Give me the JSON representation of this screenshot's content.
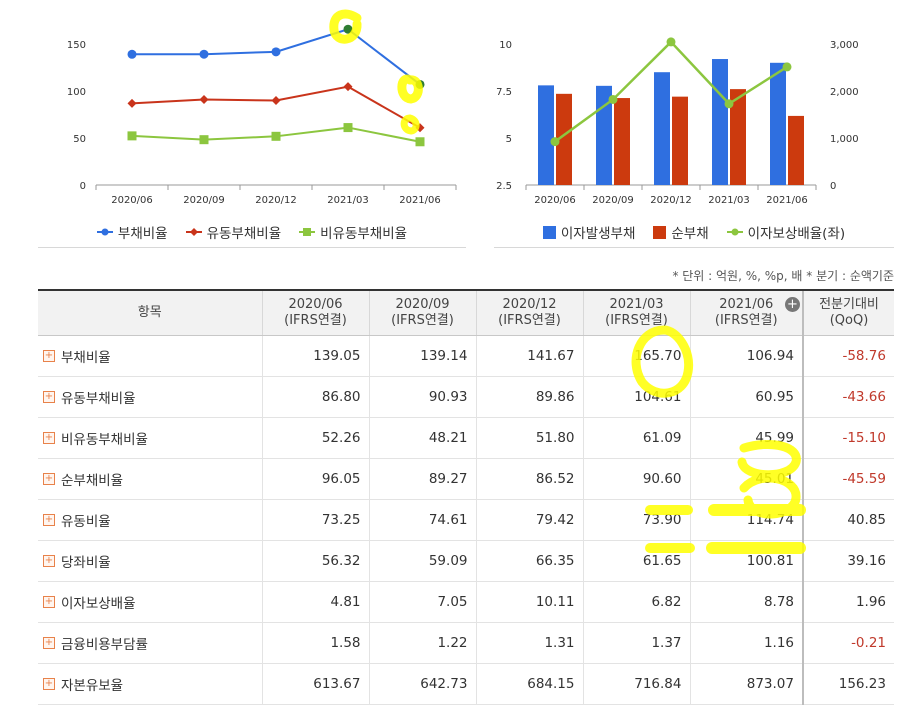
{
  "chart_data": [
    {
      "type": "line",
      "categories": [
        "2020/06",
        "2020/09",
        "2020/12",
        "2021/03",
        "2021/06"
      ],
      "ylim": [
        0,
        150
      ],
      "yticks": [
        0,
        50,
        100,
        150
      ],
      "series": [
        {
          "name": "부채비율",
          "values": [
            139.05,
            139.14,
            141.67,
            165.7,
            106.94
          ],
          "color": "#2f6fe0",
          "marker": "circle"
        },
        {
          "name": "유동부채비율",
          "values": [
            86.8,
            90.93,
            89.86,
            104.61,
            60.95
          ],
          "color": "#c9341b",
          "marker": "diamond"
        },
        {
          "name": "비유동부채비율",
          "values": [
            52.26,
            48.21,
            51.8,
            61.09,
            45.99
          ],
          "color": "#8cc63f",
          "marker": "square"
        }
      ],
      "grid": false,
      "legend": "bottom"
    },
    {
      "type": "bar",
      "categories": [
        "2020/06",
        "2020/09",
        "2020/12",
        "2021/03",
        "2021/06"
      ],
      "left_axis": {
        "ticks": [
          2.5,
          5,
          7.5,
          10
        ],
        "lim": [
          2.5,
          10
        ]
      },
      "right_axis": {
        "ticks": [
          0,
          1000,
          2000,
          3000
        ],
        "tick_labels": [
          "0",
          "1,000",
          "2,000",
          "3,000"
        ],
        "lim": [
          0,
          3000
        ]
      },
      "series": [
        {
          "name": "이자발생부채",
          "type": "bar",
          "axis": "right",
          "values": [
            2120,
            2110,
            2400,
            2680,
            2600
          ],
          "color": "#2f6fe0"
        },
        {
          "name": "순부채",
          "type": "bar",
          "axis": "right",
          "values": [
            1940,
            1850,
            1880,
            2040,
            1470
          ],
          "color": "#cc3a0e"
        },
        {
          "name": "이자보상배율(좌)",
          "type": "line",
          "axis": "left",
          "values": [
            4.81,
            7.05,
            10.11,
            6.82,
            8.78
          ],
          "color": "#8cc63f"
        }
      ],
      "legend": "bottom"
    }
  ],
  "note": "* 단위 : 억원, %, %p, 배   * 분기 : 순액기준",
  "table": {
    "header_item": "항목",
    "columns": [
      {
        "period": "2020/06",
        "basis": "(IFRS연결)"
      },
      {
        "period": "2020/09",
        "basis": "(IFRS연결)"
      },
      {
        "period": "2020/12",
        "basis": "(IFRS연결)"
      },
      {
        "period": "2021/03",
        "basis": "(IFRS연결)"
      },
      {
        "period": "2021/06",
        "basis": "(IFRS연결)"
      }
    ],
    "qoq_header": "전분기대비",
    "qoq_sub": "(QoQ)",
    "rows": [
      {
        "label": "부채비율",
        "values": [
          "139.05",
          "139.14",
          "141.67",
          "165.70",
          "106.94"
        ],
        "qoq": "-58.76"
      },
      {
        "label": "유동부채비율",
        "values": [
          "86.80",
          "90.93",
          "89.86",
          "104.61",
          "60.95"
        ],
        "qoq": "-43.66"
      },
      {
        "label": "비유동부채비율",
        "values": [
          "52.26",
          "48.21",
          "51.80",
          "61.09",
          "45.99"
        ],
        "qoq": "-15.10"
      },
      {
        "label": "순부채비율",
        "values": [
          "96.05",
          "89.27",
          "86.52",
          "90.60",
          "45.01"
        ],
        "qoq": "-45.59"
      },
      {
        "label": "유동비율",
        "values": [
          "73.25",
          "74.61",
          "79.42",
          "73.90",
          "114.74"
        ],
        "qoq": "40.85"
      },
      {
        "label": "당좌비율",
        "values": [
          "56.32",
          "59.09",
          "66.35",
          "61.65",
          "100.81"
        ],
        "qoq": "39.16"
      },
      {
        "label": "이자보상배율",
        "values": [
          "4.81",
          "7.05",
          "10.11",
          "6.82",
          "8.78"
        ],
        "qoq": "1.96"
      },
      {
        "label": "금융비용부담률",
        "values": [
          "1.58",
          "1.22",
          "1.31",
          "1.37",
          "1.16"
        ],
        "qoq": "-0.21"
      },
      {
        "label": "자본유보율",
        "values": [
          "613.67",
          "642.73",
          "684.15",
          "716.84",
          "873.07"
        ],
        "qoq": "156.23"
      }
    ]
  },
  "colors": {
    "highlight": "#ffff00",
    "negative": "#c0392b"
  }
}
